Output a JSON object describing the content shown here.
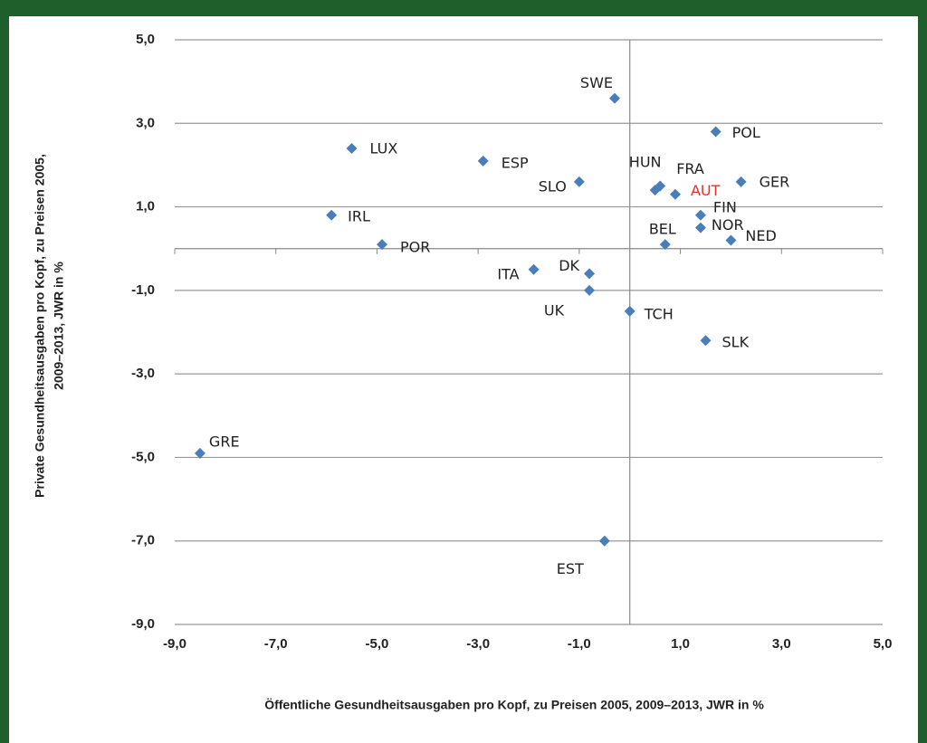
{
  "chart_data": {
    "type": "scatter",
    "x_label": "Öffentliche Gesundheitsausgaben pro Kopf, zu Preisen 2005, 2009–2013, JWR in %",
    "y_label": [
      "Private Gesundheitsausgaben pro Kopf, zu Preisen 2005,",
      "2009–2013, JWR in %"
    ],
    "color": "#4a7ebb",
    "labels": [
      "SWE",
      "POL",
      "LUX",
      "ESP",
      "SLO",
      "HUN",
      "FRA",
      "AUT",
      "GER",
      "IRL",
      "FIN",
      "NOR",
      "NED",
      "POR",
      "BEL",
      "ITA",
      "DK",
      "UK",
      "TCH",
      "SLK",
      "GRE",
      "EST"
    ],
    "label_colors": [
      "#222",
      "#222",
      "#222",
      "#222",
      "#222",
      "#222",
      "#222",
      "#e8302a",
      "#222",
      "#222",
      "#222",
      "#222",
      "#222",
      "#222",
      "#222",
      "#222",
      "#222",
      "#222",
      "#222",
      "#222",
      "#222",
      "#222"
    ],
    "x": [
      -0.3,
      1.7,
      -5.5,
      -2.9,
      -1.0,
      0.5,
      0.6,
      0.9,
      2.2,
      -5.9,
      1.4,
      1.4,
      2.0,
      -4.9,
      0.7,
      -1.9,
      -0.8,
      -0.8,
      0.0,
      1.5,
      -8.5,
      -0.5
    ],
    "y": [
      3.6,
      2.8,
      2.4,
      2.1,
      1.6,
      1.4,
      1.5,
      1.3,
      1.6,
      0.8,
      0.8,
      0.5,
      0.2,
      0.1,
      0.1,
      -0.5,
      -0.6,
      -1.0,
      -1.5,
      -2.2,
      -4.9,
      -7.0
    ],
    "xlim": [
      -9,
      5
    ],
    "ylim": [
      -9,
      5
    ],
    "xticks": [
      {
        "value": -9,
        "label": "-9,0"
      },
      {
        "value": -7,
        "label": "-7,0"
      },
      {
        "value": -5,
        "label": "-5,0"
      },
      {
        "value": -3,
        "label": "-3,0"
      },
      {
        "value": -1,
        "label": "-1,0"
      },
      {
        "value": 1,
        "label": "1,0"
      },
      {
        "value": 3,
        "label": "3,0"
      },
      {
        "value": 5,
        "label": "5,0"
      }
    ],
    "yticks": [
      {
        "value": -9,
        "label": "-9,0"
      },
      {
        "value": -7,
        "label": "-7,0"
      },
      {
        "value": -5,
        "label": "-5,0"
      },
      {
        "value": -3,
        "label": "-3,0"
      },
      {
        "value": -1,
        "label": "-1,0"
      },
      {
        "value": 1,
        "label": "1,0"
      },
      {
        "value": 3,
        "label": "3,0"
      },
      {
        "value": 5,
        "label": "5,0"
      }
    ],
    "grid": true
  }
}
